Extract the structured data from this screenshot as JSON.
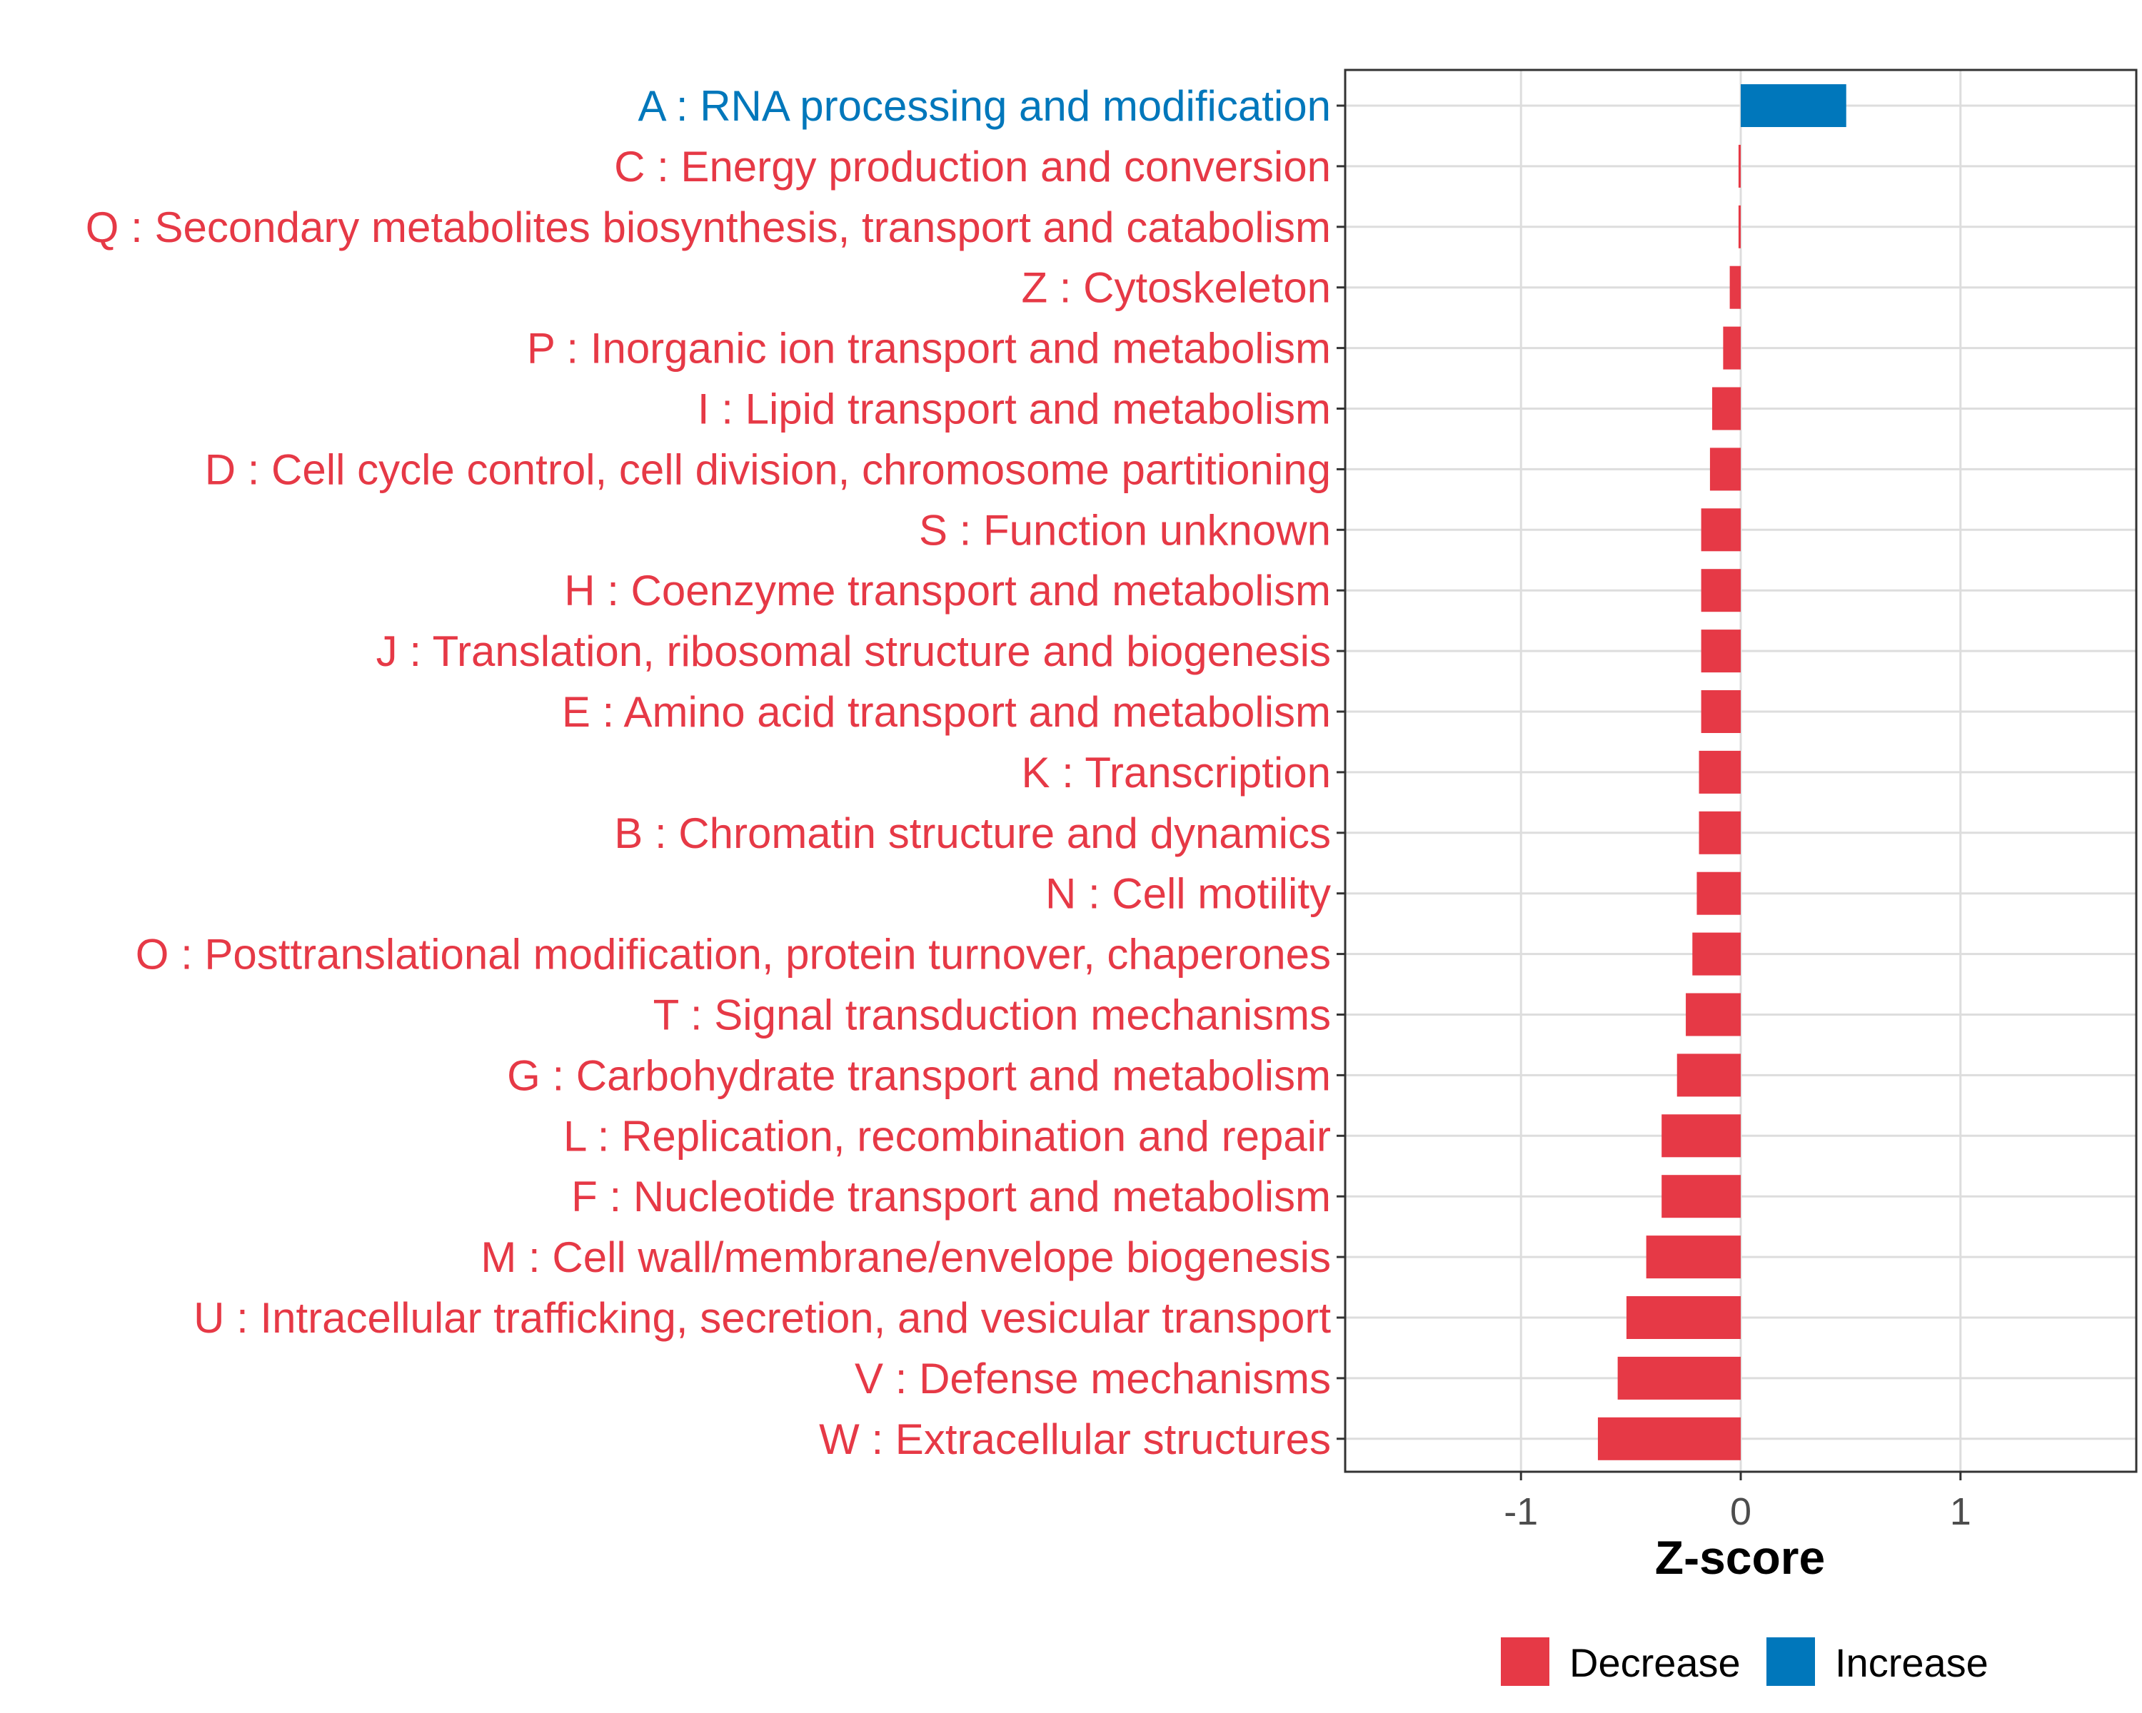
{
  "chart_data": {
    "type": "bar",
    "orientation": "horizontal",
    "title": "",
    "xlabel": "Z-score",
    "ylabel": "",
    "xlim": [
      -1.8,
      1.8
    ],
    "xticks": [
      -1,
      0,
      1
    ],
    "xtick_labels": [
      "-1",
      "0",
      "1"
    ],
    "grid": true,
    "legend_position": "bottom",
    "colors": {
      "Decrease": "#E63946",
      "Increase": "#0077BB"
    },
    "legend": [
      {
        "label": "Decrease",
        "color": "#E63946"
      },
      {
        "label": "Increase",
        "color": "#0077BB"
      }
    ],
    "categories": [
      "A : RNA processing and modification",
      "C : Energy production and conversion",
      "Q : Secondary metabolites biosynthesis, transport and catabolism",
      "Z : Cytoskeleton",
      "P : Inorganic ion transport and metabolism",
      "I : Lipid transport and metabolism",
      "D : Cell cycle control, cell division, chromosome partitioning",
      "S : Function unknown",
      "H : Coenzyme transport and metabolism",
      "J : Translation, ribosomal structure and biogenesis",
      "E : Amino acid transport and metabolism",
      "K : Transcription",
      "B : Chromatin structure and dynamics",
      "N : Cell motility",
      "O : Posttranslational modification, protein turnover, chaperones",
      "T : Signal transduction mechanisms",
      "G : Carbohydrate transport and metabolism",
      "L : Replication, recombination and repair",
      "F : Nucleotide transport and metabolism",
      "M : Cell wall/membrane/envelope biogenesis",
      "U : Intracellular trafficking, secretion, and vesicular transport",
      "V : Defense mechanisms",
      "W : Extracellular structures"
    ],
    "values": [
      0.48,
      -0.01,
      -0.01,
      -0.05,
      -0.08,
      -0.13,
      -0.14,
      -0.18,
      -0.18,
      -0.18,
      -0.18,
      -0.19,
      -0.19,
      -0.2,
      -0.22,
      -0.25,
      -0.29,
      -0.36,
      -0.36,
      -0.43,
      -0.52,
      -0.56,
      -0.65
    ],
    "groups": [
      "Increase",
      "Decrease",
      "Decrease",
      "Decrease",
      "Decrease",
      "Decrease",
      "Decrease",
      "Decrease",
      "Decrease",
      "Decrease",
      "Decrease",
      "Decrease",
      "Decrease",
      "Decrease",
      "Decrease",
      "Decrease",
      "Decrease",
      "Decrease",
      "Decrease",
      "Decrease",
      "Decrease",
      "Decrease",
      "Decrease"
    ]
  }
}
